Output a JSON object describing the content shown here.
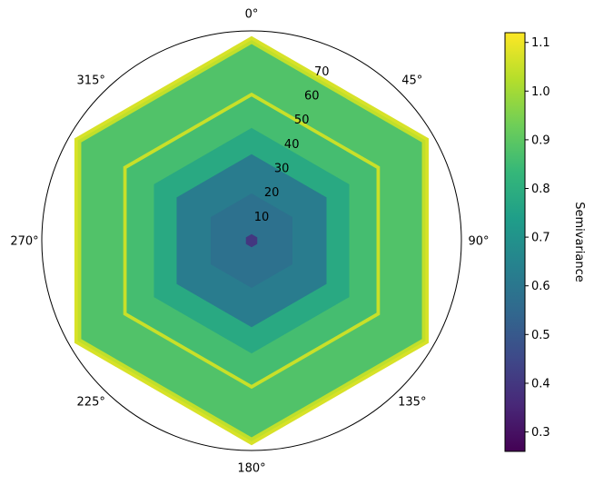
{
  "chart_data": {
    "type": "heatmap",
    "subtype": "polar-hexagonal",
    "angle_labels": [
      "0°",
      "45°",
      "90°",
      "135°",
      "180°",
      "225°",
      "270°",
      "315°"
    ],
    "angle_zero_location": "top",
    "angle_direction": "clockwise",
    "radial_ticks": [
      10,
      20,
      30,
      40,
      50,
      60,
      70
    ],
    "radial_lim": [
      0,
      80
    ],
    "bands": [
      {
        "r_inner": 0,
        "r_outer": 2.5,
        "value": 0.4
      },
      {
        "r_inner": 2.5,
        "r_outer": 18,
        "value": 0.58
      },
      {
        "r_inner": 18,
        "r_outer": 33,
        "value": 0.62
      },
      {
        "r_inner": 33,
        "r_outer": 43,
        "value": 0.78
      },
      {
        "r_inner": 43,
        "r_outer": 55,
        "value": 0.86
      },
      {
        "r_inner": 55,
        "r_outer": 56.5,
        "value": 1.05
      },
      {
        "r_inner": 56.5,
        "r_outer": 75,
        "value": 0.88
      },
      {
        "r_inner": 75,
        "r_outer": 76.5,
        "value": 1.04
      },
      {
        "r_inner": 76.5,
        "r_outer": 78,
        "value": 1.07
      }
    ],
    "colorbar": {
      "label": "Semivariance",
      "colormap": "viridis",
      "vmin": 0.26,
      "vmax": 1.12,
      "ticks": [
        "0.3",
        "0.4",
        "0.5",
        "0.6",
        "0.7",
        "0.8",
        "0.9",
        "1.0",
        "1.1"
      ]
    }
  }
}
